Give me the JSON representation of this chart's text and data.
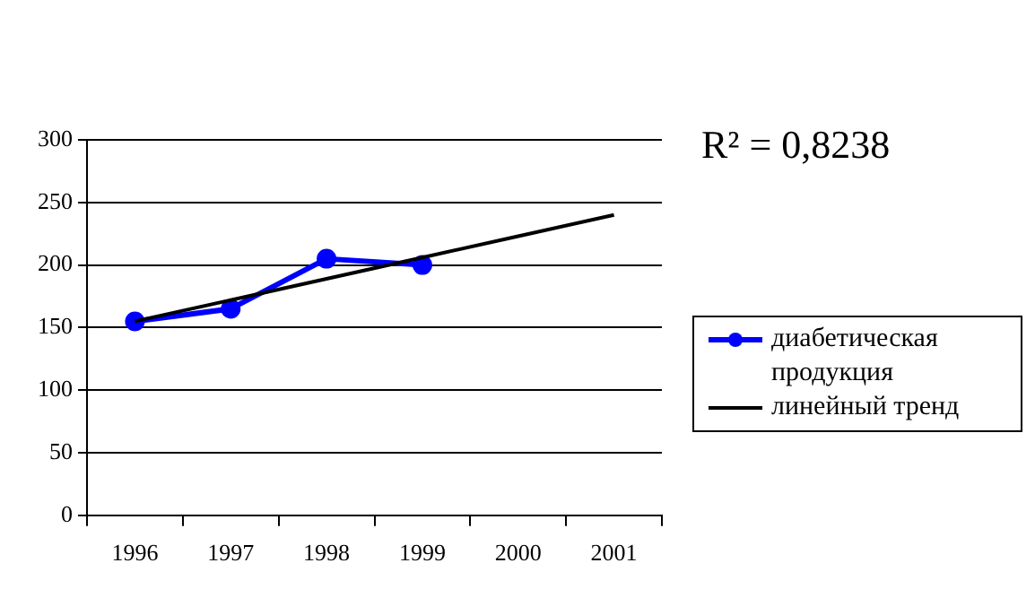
{
  "chart_data": {
    "type": "line",
    "categories": [
      "1996",
      "1997",
      "1998",
      "1999",
      "2000",
      "2001"
    ],
    "series": [
      {
        "name": "диабетическая продукция",
        "color": "#0000ff",
        "values": [
          155,
          165,
          205,
          200,
          null,
          null
        ],
        "marker": "circle"
      },
      {
        "name": "линейный тренд",
        "color": "#000000",
        "values": [
          155,
          172,
          189,
          206,
          223,
          240
        ],
        "marker": "none"
      }
    ],
    "ylim": [
      0,
      300
    ],
    "yticks": [
      0,
      50,
      100,
      150,
      200,
      250,
      300
    ],
    "grid": "y",
    "legend": "right",
    "annotations": [
      "R² = 0,8238"
    ]
  }
}
